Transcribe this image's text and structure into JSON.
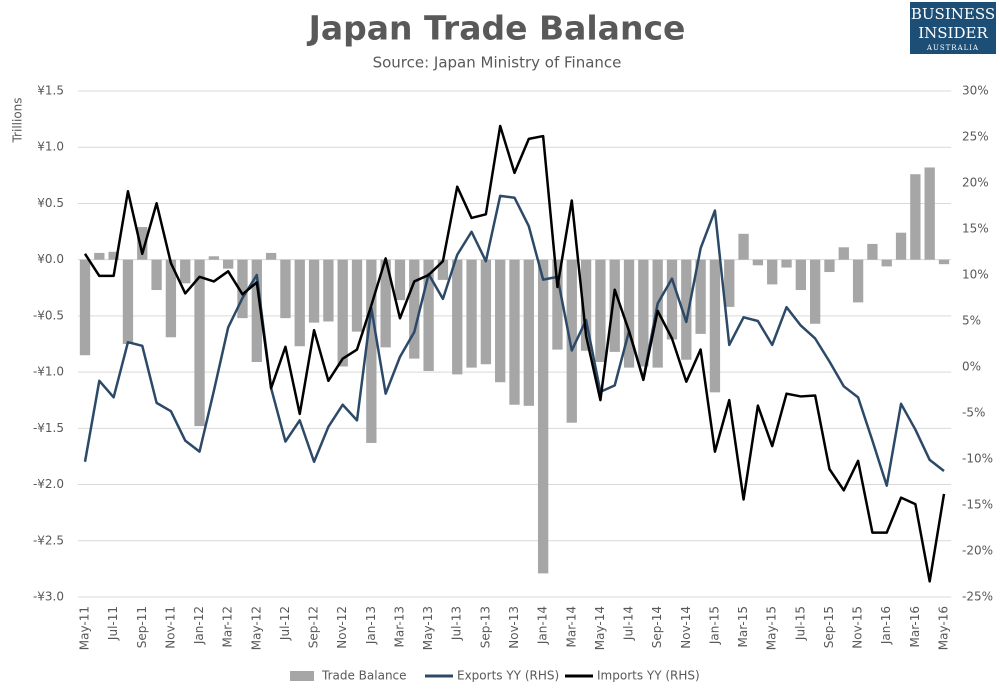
{
  "chart_data": {
    "type": "bar",
    "title": "Japan Trade Balance",
    "subtitle": "Source: Japan Ministry of Finance",
    "logo": [
      "BUSINESS",
      "INSIDER",
      "AUSTRALIA"
    ],
    "y_label": "Trillions",
    "categories": [
      "May-11",
      null,
      "Jul-11",
      null,
      "Sep-11",
      null,
      "Nov-11",
      null,
      "Jan-12",
      null,
      "Mar-12",
      null,
      "May-12",
      null,
      "Jul-12",
      null,
      "Sep-12",
      null,
      "Nov-12",
      null,
      "Jan-13",
      null,
      "Mar-13",
      null,
      "May-13",
      null,
      "Jul-13",
      null,
      "Sep-13",
      null,
      "Nov-13",
      null,
      "Jan-14",
      null,
      "Mar-14",
      null,
      "May-14",
      null,
      "Jul-14",
      null,
      "Sep-14",
      null,
      "Nov-14",
      null,
      "Jan-15",
      null,
      "Mar-15",
      null,
      "May-15",
      null,
      "Jul-15",
      null,
      "Sep-15",
      null,
      "Nov-15",
      null,
      "Jan-16",
      null,
      "Mar-16",
      null,
      "May-16"
    ],
    "series": [
      {
        "name": "Trade Balance",
        "type": "bar",
        "color": "#a6a6a6",
        "values": [
          -0.85,
          0.06,
          0.07,
          -0.75,
          0.29,
          -0.27,
          -0.69,
          -0.21,
          -1.48,
          0.03,
          -0.08,
          -0.52,
          -0.91,
          0.06,
          -0.52,
          -0.77,
          -0.56,
          -0.55,
          -0.95,
          -0.64,
          -1.63,
          -0.78,
          -0.36,
          -0.88,
          -0.99,
          -0.18,
          -1.02,
          -0.96,
          -0.93,
          -1.09,
          -1.29,
          -1.3,
          -2.79,
          -0.8,
          -1.45,
          -0.81,
          -0.91,
          -0.82,
          -0.96,
          -0.95,
          -0.96,
          -0.71,
          -0.89,
          -0.66,
          -1.18,
          -0.42,
          0.23,
          -0.05,
          -0.22,
          -0.07,
          -0.27,
          -0.57,
          -0.11,
          0.11,
          -0.38,
          0.14,
          -0.06,
          0.24,
          0.76,
          0.82,
          -0.04
        ]
      },
      {
        "name": "Exports YY (RHS)",
        "type": "line",
        "axis": "y2",
        "color": "#2c4a68",
        "values": [
          -10.3,
          -1.5,
          -3.3,
          2.7,
          2.3,
          -3.9,
          -4.8,
          -8.0,
          -9.2,
          -2.6,
          4.3,
          7.5,
          10.0,
          -2.3,
          -8.1,
          -5.8,
          -10.3,
          -6.5,
          -4.1,
          -5.8,
          6.4,
          -2.9,
          1.1,
          3.8,
          10.1,
          7.4,
          12.2,
          14.7,
          11.5,
          18.6,
          18.4,
          15.3,
          9.5,
          9.8,
          1.8,
          5.1,
          -2.7,
          -2.0,
          3.9,
          -1.3,
          6.9,
          9.6,
          4.9,
          12.9,
          17.0,
          2.4,
          5.4,
          5.0,
          2.4,
          6.5,
          4.5,
          3.1,
          0.6,
          -2.1,
          -3.3,
          -8.0,
          -12.9,
          -4.0,
          -6.8,
          -10.1,
          -11.3
        ]
      },
      {
        "name": "Imports YY (RHS)",
        "type": "line",
        "axis": "y2",
        "color": "#000000",
        "values": [
          12.3,
          9.9,
          9.9,
          19.1,
          12.3,
          17.8,
          11.3,
          8.0,
          9.8,
          9.3,
          10.4,
          7.9,
          9.2,
          -2.3,
          2.2,
          -5.1,
          4.0,
          -1.5,
          0.9,
          1.9,
          6.7,
          11.8,
          5.3,
          9.3,
          10.0,
          11.5,
          19.6,
          16.2,
          16.6,
          26.2,
          21.1,
          24.8,
          25.1,
          8.7,
          18.1,
          3.4,
          -3.6,
          8.4,
          3.9,
          -1.4,
          6.1,
          3.1,
          -1.6,
          1.9,
          -9.2,
          -3.6,
          -14.4,
          -4.2,
          -8.6,
          -2.9,
          -3.2,
          -3.1,
          -11.1,
          -13.4,
          -10.2,
          -18.0,
          -18.0,
          -14.2,
          -14.9,
          -23.3,
          -13.8
        ]
      }
    ],
    "ylim": [
      -3.0,
      1.5
    ],
    "yticks": [
      {
        "value": 1.5,
        "label": "¥1.5"
      },
      {
        "value": 1.0,
        "label": "¥1.0"
      },
      {
        "value": 0.5,
        "label": "¥0.5"
      },
      {
        "value": 0,
        "label": "¥0.0"
      },
      {
        "value": -0.5,
        "label": "-¥0.5"
      },
      {
        "value": -1.0,
        "label": "-¥1.0"
      },
      {
        "value": -1.5,
        "label": "-¥1.5"
      },
      {
        "value": -2.0,
        "label": "-¥2.0"
      },
      {
        "value": -2.5,
        "label": "-¥2.5"
      },
      {
        "value": -3.0,
        "label": "-¥3.0"
      }
    ],
    "y2lim": [
      -25,
      30
    ],
    "y2ticks": [
      {
        "value": 30,
        "label": "30%"
      },
      {
        "value": 25,
        "label": "25%"
      },
      {
        "value": 20,
        "label": "20%"
      },
      {
        "value": 15,
        "label": "15%"
      },
      {
        "value": 10,
        "label": "10%"
      },
      {
        "value": 5,
        "label": "5%"
      },
      {
        "value": 0,
        "label": "0%"
      },
      {
        "value": -5,
        "label": "-5%"
      },
      {
        "value": -10,
        "label": "-10%"
      },
      {
        "value": -15,
        "label": "-15%"
      },
      {
        "value": -20,
        "label": "-20%"
      },
      {
        "value": -25,
        "label": "-25%"
      }
    ],
    "grid": true,
    "legend": "bottom"
  }
}
